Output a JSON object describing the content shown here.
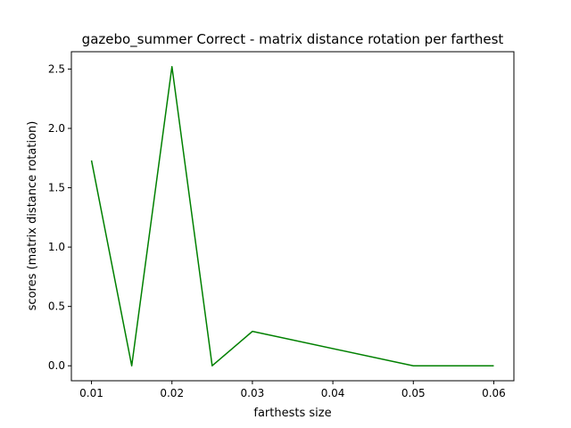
{
  "chart_data": {
    "type": "line",
    "title": "gazebo_summer Correct - matrix distance rotation per farthest",
    "xlabel": "farthests size",
    "ylabel": "scores (matrix distance rotation)",
    "xlim": [
      0.0075,
      0.0625
    ],
    "ylim": [
      -0.126,
      2.646
    ],
    "xticks": [
      0.01,
      0.02,
      0.03,
      0.04,
      0.05,
      0.06
    ],
    "xtick_labels": [
      "0.01",
      "0.02",
      "0.03",
      "0.04",
      "0.05",
      "0.06"
    ],
    "yticks": [
      0.0,
      0.5,
      1.0,
      1.5,
      2.0,
      2.5
    ],
    "ytick_labels": [
      "0.0",
      "0.5",
      "1.0",
      "1.5",
      "2.0",
      "2.5"
    ],
    "grid": false,
    "series": [
      {
        "color": "#008000",
        "x": [
          0.01,
          0.015,
          0.02,
          0.025,
          0.03,
          0.05,
          0.06
        ],
        "y": [
          1.73,
          0.0,
          2.52,
          0.0,
          0.29,
          0.0,
          0.0
        ]
      }
    ]
  }
}
